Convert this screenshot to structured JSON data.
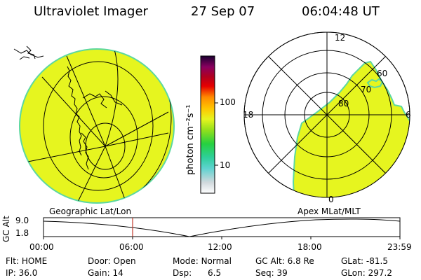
{
  "header": {
    "instrument": "Ultraviolet Imager",
    "date": "27 Sep 07",
    "time": "06:04:48 UT"
  },
  "colorbar": {
    "unit_label": "photon cm⁻²s⁻¹",
    "ticks": [
      "100",
      "10"
    ]
  },
  "left_panel": {
    "label": "Geographic Lat/Lon",
    "fill_color": "#e6f51f",
    "edge_color": "#5cd8a0"
  },
  "right_panel": {
    "label": "Apex MLat/MLT",
    "mlt_labels": {
      "top": "12",
      "left": "18",
      "right": "6",
      "bottom": "0"
    },
    "lat_labels": [
      "60",
      "70",
      "80"
    ]
  },
  "timeline": {
    "axis_title": "GC Alt",
    "y_ticks": [
      "9.0",
      "1.8"
    ],
    "x_ticks": [
      "00:00",
      "06:00",
      "12:00",
      "18:00",
      "23:59"
    ],
    "marker_color": "#c0392b"
  },
  "status": {
    "row1": [
      {
        "key": "Flt:",
        "value": "HOME"
      },
      {
        "key": "Door:",
        "value": "Open"
      },
      {
        "key": "Mode:",
        "value": "Normal"
      },
      {
        "key": "GC Alt:",
        "value": "6.8 Re"
      },
      {
        "key": "GLat:",
        "value": "-81.5"
      }
    ],
    "row2": [
      {
        "key": "IP:",
        "value": "36.0"
      },
      {
        "key": "Gain:",
        "value": "14"
      },
      {
        "key": "Dsp:",
        "value": "6.5"
      },
      {
        "key": "Seq:",
        "value": "39"
      },
      {
        "key": "GLon:",
        "value": "297.2"
      }
    ]
  }
}
